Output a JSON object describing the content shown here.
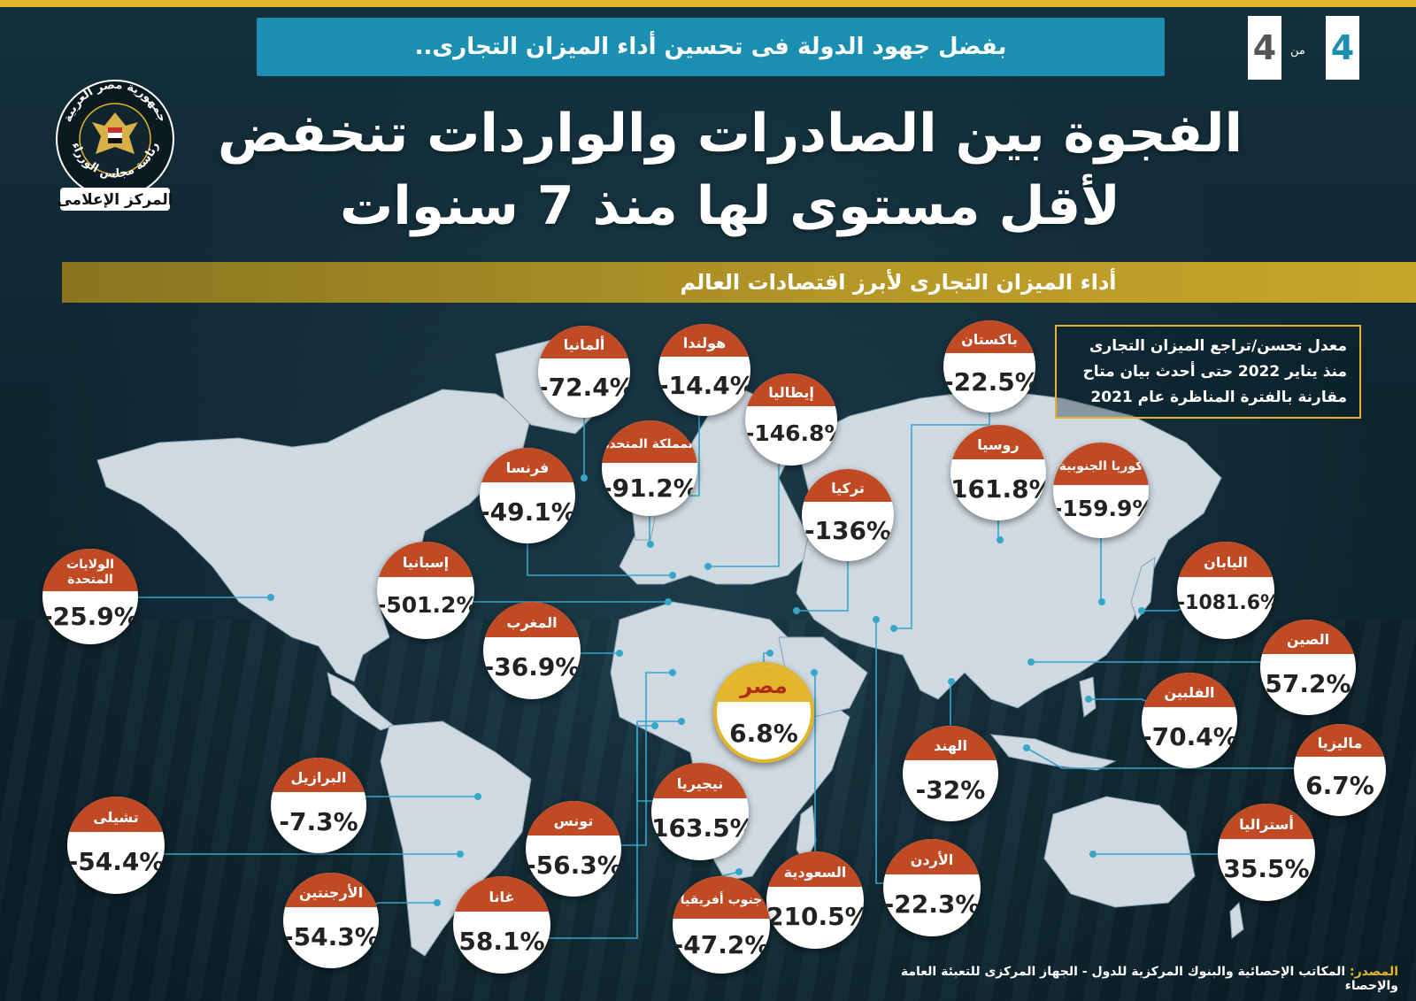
{
  "header": {
    "banner": "بفضل جهود الدولة فى تحسين أداء الميزان التجارى..",
    "page_current": "4",
    "page_of": "من",
    "page_total": "4",
    "title_line1": "الفجوة بين الصادرات والواردات تنخفض",
    "title_line2": "لأقل مستوى لها منذ 7 سنوات",
    "subtitle": "أداء الميزان التجارى لأبرز اقتصادات العالم"
  },
  "logo": {
    "text_top": "جمهورية مصر العربية",
    "text_bottom": "رئاسة مجلس الوزراء",
    "text_banner": "المركز الإعلامى"
  },
  "note": {
    "line1": "معدل تحسن/تراجع الميزان التجارى",
    "line2": "منذ يناير 2022 حتى أحدث بيان متاح",
    "line3": "مقارنة بالفترة المناظرة عام 2021"
  },
  "map_data": {
    "countries": [
      {
        "name": "ألمانيا",
        "value": "-72.4%"
      },
      {
        "name": "هولندا",
        "value": "-14.4%"
      },
      {
        "name": "باكستان",
        "value": "-22.5%"
      },
      {
        "name": "إيطاليا",
        "value": "-146.8%"
      },
      {
        "name": "المملكة المتحدة",
        "value": "-91.2%"
      },
      {
        "name": "فرنسا",
        "value": "-49.1%"
      },
      {
        "name": "تركيا",
        "value": "-136%"
      },
      {
        "name": "روسيا",
        "value": "161.8%"
      },
      {
        "name": "كوريا الجنوبية",
        "value": "-159.9%"
      },
      {
        "name": "الولايات المتحدة",
        "value": "-25.9%"
      },
      {
        "name": "إسبانيا",
        "value": "-501.2%"
      },
      {
        "name": "اليابان",
        "value": "-1081.6%"
      },
      {
        "name": "المغرب",
        "value": "-36.9%"
      },
      {
        "name": "الصين",
        "value": "57.2%"
      },
      {
        "name": "مصر",
        "value": "6.8%"
      },
      {
        "name": "الفلبين",
        "value": "-70.4%"
      },
      {
        "name": "ماليزيا",
        "value": "6.7%"
      },
      {
        "name": "الهند",
        "value": "-32%"
      },
      {
        "name": "البرازيل",
        "value": "-7.3%"
      },
      {
        "name": "نيجيريا",
        "value": "163.5%"
      },
      {
        "name": "تشيلى",
        "value": "-54.4%"
      },
      {
        "name": "تونس",
        "value": "-56.3%"
      },
      {
        "name": "أستراليا",
        "value": "35.5%"
      },
      {
        "name": "الأردن",
        "value": "-22.3%"
      },
      {
        "name": "السعودية",
        "value": "210.5%"
      },
      {
        "name": "الأرجنتين",
        "value": "-54.3%"
      },
      {
        "name": "غانا",
        "value": "58.1%"
      },
      {
        "name": "جنوب أفريقيا",
        "value": "-47.2%"
      }
    ]
  },
  "footer": {
    "label": "المصدر:",
    "text": "المكاتب الإحصائية والبنوك المركزية للدول - الجهاز المركزى للتعبئة العامة والإحصاء"
  },
  "colors": {
    "accent_gold": "#e3b52a",
    "banner_blue": "#1b8fb1",
    "bubble_red": "#bf4a23",
    "land": "#cfd9e2",
    "background": "#0e2530"
  }
}
